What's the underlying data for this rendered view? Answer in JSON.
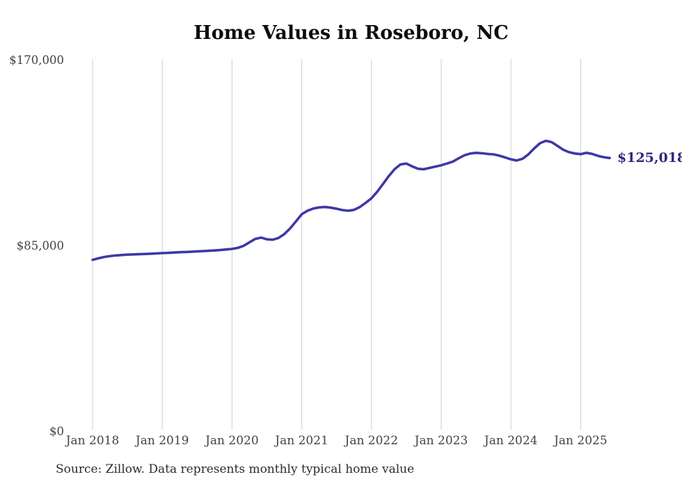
{
  "chart_data": {
    "type": "line",
    "title": "Home Values in Roseboro, NC",
    "source_note": "Source: Zillow. Data represents monthly typical home value",
    "end_label": "$125,018",
    "x_unit": "month",
    "x_start": "Jan 2018",
    "x_end": "Jun 2025",
    "x_tick_labels": [
      "Jan 2018",
      "Jan 2019",
      "Jan 2020",
      "Jan 2021",
      "Jan 2022",
      "Jan 2023",
      "Jan 2024",
      "Jan 2025"
    ],
    "months_per_tick": 12,
    "y_ticks": [
      {
        "label": "$170,000",
        "value": 170000
      },
      {
        "label": "$85,000",
        "value": 85000
      },
      {
        "label": "$0",
        "value": 0
      }
    ],
    "ylim": [
      0,
      170000
    ],
    "grid": "vertical-year-lines-only",
    "legend": "none",
    "series": [
      {
        "name": "Monthly typical home value (USD)",
        "values": [
          78400,
          79100,
          79700,
          80100,
          80400,
          80600,
          80800,
          80900,
          81000,
          81100,
          81200,
          81350,
          81500,
          81600,
          81750,
          81900,
          82000,
          82100,
          82250,
          82400,
          82550,
          82700,
          82900,
          83150,
          83400,
          83900,
          84800,
          86400,
          88000,
          88600,
          87800,
          87600,
          88400,
          90200,
          92800,
          96000,
          99300,
          100900,
          101900,
          102400,
          102600,
          102300,
          101800,
          101200,
          100900,
          101300,
          102600,
          104500,
          106600,
          109600,
          113200,
          116800,
          120000,
          122100,
          122500,
          121200,
          120100,
          119900,
          120500,
          121100,
          121700,
          122500,
          123400,
          124900,
          126300,
          127100,
          127400,
          127200,
          126900,
          126700,
          126100,
          125300,
          124400,
          123900,
          124700,
          126700,
          129400,
          131800,
          132900,
          132300,
          130600,
          128800,
          127700,
          127100,
          126800,
          127400,
          126900,
          126000,
          125400,
          125018
        ]
      }
    ],
    "colors": {
      "line": "#3e38a6",
      "end_label": "#2e2a7e",
      "title": "#0d0d0d",
      "axis_labels": "#434343",
      "source": "#2b2b2b",
      "gridline": "#cfcfcf",
      "background": "#ffffff"
    }
  }
}
